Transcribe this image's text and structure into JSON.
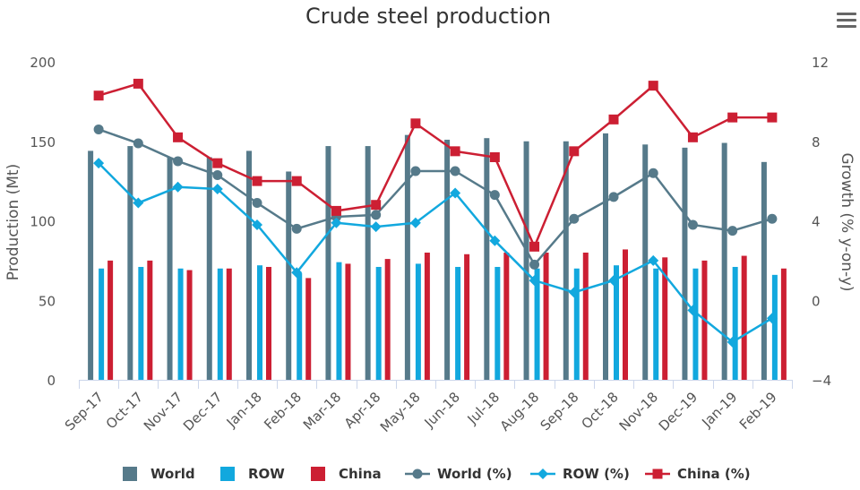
{
  "chart_data": {
    "type": "bar",
    "title": "Crude steel production",
    "categories": [
      "Sep-17",
      "Oct-17",
      "Nov-17",
      "Dec-17",
      "Jan-18",
      "Feb-18",
      "Mar-18",
      "Apr-18",
      "May-18",
      "Jun-18",
      "Jul-18",
      "Aug-18",
      "Sep-18",
      "Oct-18",
      "Nov-18",
      "Dec-19",
      "Jan-19",
      "Feb-19"
    ],
    "y_left": {
      "label": "Production (Mt)",
      "ticks": [
        0,
        50,
        100,
        150,
        200
      ],
      "range": [
        0,
        200
      ]
    },
    "y_right": {
      "label": "Growth (% y-on-y)",
      "ticks": [
        -4,
        0,
        4,
        8,
        12
      ],
      "range": [
        -4,
        12
      ]
    },
    "grid": false,
    "legend_position": "bottom",
    "series": [
      {
        "name": "World",
        "kind": "bar",
        "axis": "left",
        "color": "#567a8a",
        "values": [
          144,
          147,
          140,
          140,
          144,
          131,
          147,
          147,
          154,
          151,
          152,
          150,
          150,
          155,
          148,
          146,
          149,
          137
        ]
      },
      {
        "name": "ROW",
        "kind": "bar",
        "axis": "left",
        "color": "#12a8de",
        "values": [
          70,
          71,
          70,
          70,
          72,
          67,
          74,
          71,
          73,
          71,
          71,
          70,
          70,
          72,
          70,
          70,
          71,
          66
        ]
      },
      {
        "name": "China",
        "kind": "bar",
        "axis": "left",
        "color": "#cc1f33",
        "values": [
          75,
          75,
          69,
          70,
          71,
          64,
          73,
          76,
          80,
          79,
          80,
          80,
          80,
          82,
          77,
          75,
          78,
          70
        ]
      },
      {
        "name": "World (%)",
        "kind": "line",
        "marker": "circle",
        "axis": "right",
        "color": "#567a8a",
        "values": [
          8.6,
          7.9,
          7.0,
          6.3,
          4.9,
          3.6,
          4.2,
          4.3,
          6.5,
          6.5,
          5.3,
          1.8,
          4.1,
          5.2,
          6.4,
          3.8,
          3.5,
          4.1
        ]
      },
      {
        "name": "ROW (%)",
        "kind": "line",
        "marker": "diamond",
        "axis": "right",
        "color": "#12a8de",
        "values": [
          6.9,
          4.9,
          5.7,
          5.6,
          3.8,
          1.4,
          3.9,
          3.7,
          3.9,
          5.4,
          3.0,
          1.0,
          0.4,
          1.0,
          2.0,
          -0.5,
          -2.1,
          -0.9
        ]
      },
      {
        "name": "China (%)",
        "kind": "line",
        "marker": "square",
        "axis": "right",
        "color": "#cc1f33",
        "values": [
          10.3,
          10.9,
          8.2,
          6.9,
          6.0,
          6.0,
          4.5,
          4.8,
          8.9,
          7.5,
          7.2,
          2.7,
          7.5,
          9.1,
          10.8,
          8.2,
          9.2,
          9.2
        ]
      }
    ]
  },
  "menu": {
    "icon": "hamburger-menu-icon"
  }
}
